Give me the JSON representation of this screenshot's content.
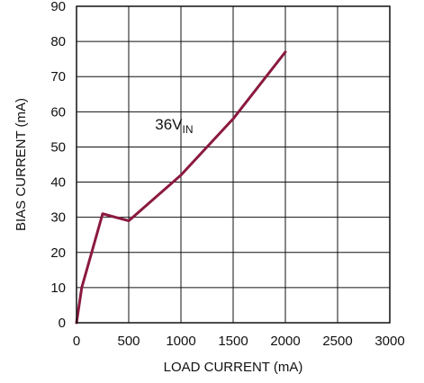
{
  "colors": {
    "series": "#8b1a3e",
    "grid": "#111111",
    "frame": "#111111"
  },
  "chart_data": {
    "type": "line",
    "title": "",
    "xlabel": "LOAD CURRENT (mA)",
    "ylabel": "BIAS CURRENT (mA)",
    "xlim": [
      0,
      3000
    ],
    "ylim": [
      0,
      90
    ],
    "xticks": [
      0,
      500,
      1000,
      1500,
      2000,
      2500,
      3000
    ],
    "yticks": [
      0,
      10,
      20,
      30,
      40,
      50,
      60,
      70,
      80,
      90
    ],
    "grid": true,
    "annotation": {
      "main": "36V",
      "subscript": "IN",
      "x": 900,
      "y": 54
    },
    "series": [
      {
        "x": [
          0,
          50,
          250,
          500,
          1000,
          1500,
          2000
        ],
        "y": [
          0,
          10,
          31,
          29,
          42,
          58,
          77
        ]
      }
    ]
  }
}
